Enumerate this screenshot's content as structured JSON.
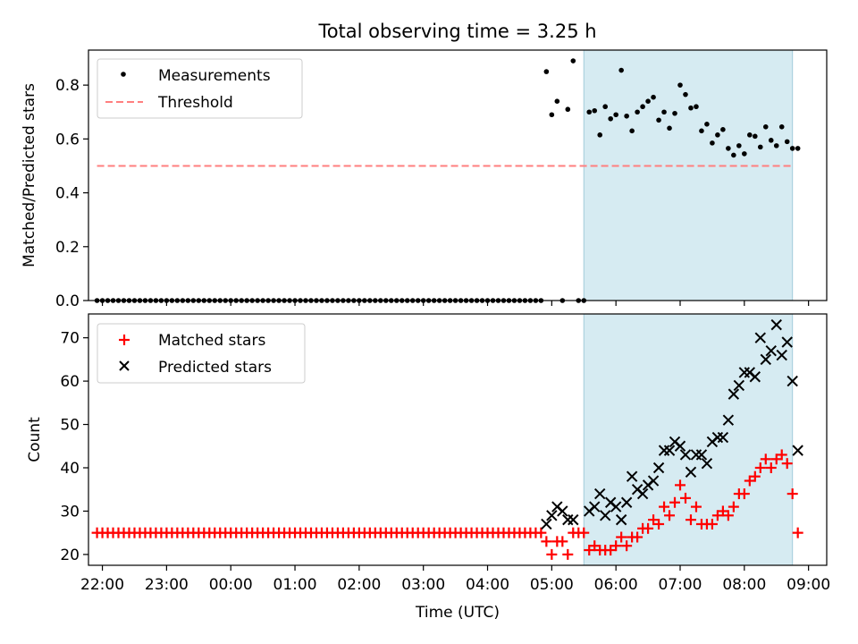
{
  "figure": {
    "title": "Total observing time = 3.25 h",
    "xlabel": "Time (UTC)"
  },
  "colors": {
    "measurement": "#000000",
    "threshold": "#ff7f7f",
    "matched": "#ff0000",
    "predicted": "#000000",
    "span": "#add8e6"
  },
  "chart_data": [
    {
      "type": "scatter",
      "panel": "top",
      "title": "Total observing time = 3.25 h",
      "xlabel": "",
      "ylabel": "Matched/Predicted stars",
      "ylim": [
        0,
        0.93
      ],
      "xlim": [
        "21:47",
        "09:17"
      ],
      "x_ticks": [
        "22:00",
        "23:00",
        "00:00",
        "01:00",
        "02:00",
        "03:00",
        "04:00",
        "05:00",
        "06:00",
        "07:00",
        "08:00",
        "09:00"
      ],
      "y_ticks": [
        "0.0",
        "0.2",
        "0.4",
        "0.6",
        "0.8"
      ],
      "legend": {
        "placement": "upper-left",
        "entries": [
          "Measurements",
          "Threshold"
        ]
      },
      "shaded_span": [
        "05:30",
        "08:45"
      ],
      "threshold": {
        "name": "Threshold",
        "value": 0.5,
        "x_start": "21:55",
        "x_end": "08:45"
      },
      "series": [
        {
          "name": "Measurements",
          "start": "21:55",
          "step_minutes": 5,
          "values": [
            0,
            0,
            0,
            0,
            0,
            0,
            0,
            0,
            0,
            0,
            0,
            0,
            0,
            0,
            0,
            0,
            0,
            0,
            0,
            0,
            0,
            0,
            0,
            0,
            0,
            0,
            0,
            0,
            0,
            0,
            0,
            0,
            0,
            0,
            0,
            0,
            0,
            0,
            0,
            0,
            0,
            0,
            0,
            0,
            0,
            0,
            0,
            0,
            0,
            0,
            0,
            0,
            0,
            0,
            0,
            0,
            0,
            0,
            0,
            0,
            0,
            0,
            0,
            0,
            0,
            0,
            0,
            0,
            0,
            0,
            0,
            0,
            0,
            0,
            0,
            0,
            0,
            0,
            0,
            0,
            0,
            0,
            0,
            0,
            0.85,
            0.69,
            0.74,
            0,
            0.71,
            0.89,
            0,
            0,
            0.7,
            0.705,
            0.615,
            0.72,
            0.675,
            0.69,
            0.855,
            0.685,
            0.63,
            0.7,
            0.72,
            0.74,
            0.755,
            0.67,
            0.7,
            0.64,
            0.695,
            0.8,
            0.765,
            0.715,
            0.72,
            0.63,
            0.655,
            0.585,
            0.615,
            0.635,
            0.565,
            0.54,
            0.575,
            0.545,
            0.615,
            0.61,
            0.57,
            0.645,
            0.595,
            0.575,
            0.645,
            0.59,
            0.565,
            0.565
          ]
        }
      ]
    },
    {
      "type": "scatter",
      "panel": "bottom",
      "xlabel": "Time (UTC)",
      "ylabel": "Count",
      "ylim": [
        17.5,
        75.5
      ],
      "x_ticks": [
        "22:00",
        "23:00",
        "00:00",
        "01:00",
        "02:00",
        "03:00",
        "04:00",
        "05:00",
        "06:00",
        "07:00",
        "08:00",
        "09:00"
      ],
      "y_ticks": [
        "20",
        "30",
        "40",
        "50",
        "60",
        "70"
      ],
      "legend": {
        "placement": "upper-left",
        "entries": [
          "Matched stars",
          "Predicted stars"
        ]
      },
      "shaded_span": [
        "05:30",
        "08:45"
      ],
      "series": [
        {
          "name": "Matched stars",
          "marker": "plus",
          "start": "21:55",
          "step_minutes": 5,
          "values": [
            25,
            25,
            25,
            25,
            25,
            25,
            25,
            25,
            25,
            25,
            25,
            25,
            25,
            25,
            25,
            25,
            25,
            25,
            25,
            25,
            25,
            25,
            25,
            25,
            25,
            25,
            25,
            25,
            25,
            25,
            25,
            25,
            25,
            25,
            25,
            25,
            25,
            25,
            25,
            25,
            25,
            25,
            25,
            25,
            25,
            25,
            25,
            25,
            25,
            25,
            25,
            25,
            25,
            25,
            25,
            25,
            25,
            25,
            25,
            25,
            25,
            25,
            25,
            25,
            25,
            25,
            25,
            25,
            25,
            25,
            25,
            25,
            25,
            25,
            25,
            25,
            25,
            25,
            25,
            25,
            25,
            25,
            25,
            25,
            23,
            20,
            23,
            23,
            20,
            25,
            25,
            25,
            21,
            22,
            21,
            21,
            21,
            22,
            24,
            22,
            24,
            24,
            26,
            26,
            28,
            27,
            31,
            29,
            32,
            36,
            33,
            28,
            31,
            27,
            27,
            27,
            29,
            30,
            29,
            31,
            34,
            34,
            37,
            38,
            40,
            42,
            40,
            42,
            43,
            41,
            34,
            25
          ]
        },
        {
          "name": "Predicted stars",
          "marker": "cross",
          "start": "04:55",
          "step_minutes": 5,
          "values": [
            27,
            29,
            31,
            30,
            28,
            28,
            null,
            null,
            30,
            31,
            34,
            29,
            32,
            31,
            28,
            32,
            38,
            35,
            34,
            36,
            37,
            40,
            44,
            44,
            46,
            45,
            43,
            39,
            43,
            43,
            41,
            46,
            47,
            47,
            51,
            57,
            59,
            62,
            62,
            61,
            70,
            65,
            67,
            73,
            66,
            69,
            60,
            44
          ]
        }
      ]
    }
  ]
}
